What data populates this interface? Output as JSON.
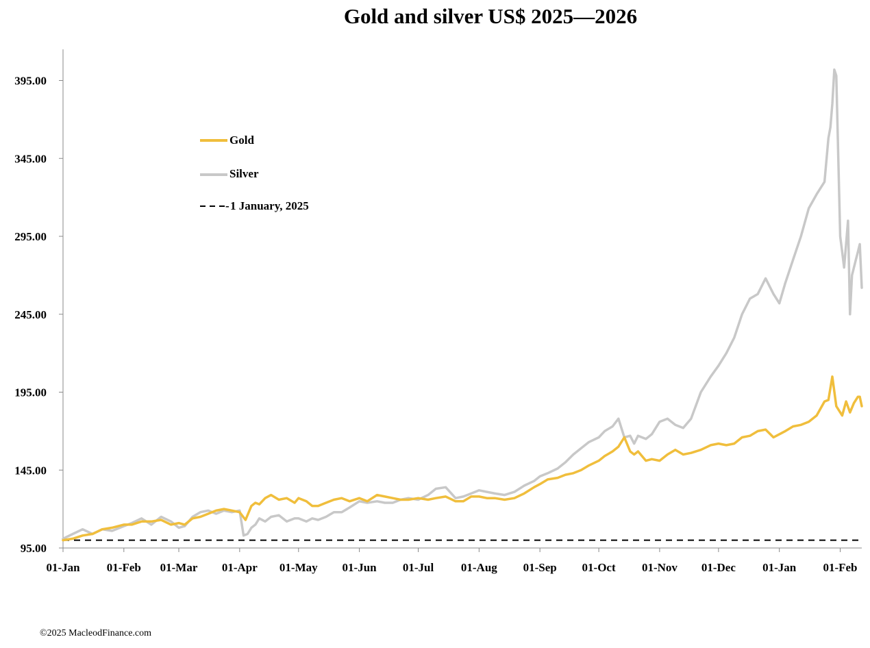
{
  "chart_data": {
    "type": "line",
    "title": "Gold and silver  US$ 2025—2026",
    "xlabel": "",
    "ylabel": "",
    "ylim": [
      95,
      415
    ],
    "yticks": [
      95,
      145,
      195,
      245,
      295,
      345,
      395
    ],
    "ytick_labels": [
      "95.00",
      "145.00",
      "195.00",
      "245.00",
      "295.00",
      "345.00",
      "395.00"
    ],
    "xlim": [
      0,
      407
    ],
    "xticks": [
      0,
      31,
      59,
      90,
      120,
      151,
      181,
      212,
      243,
      273,
      304,
      334,
      365,
      396
    ],
    "xtick_labels": [
      "01-Jan",
      "01-Feb",
      "01-Mar",
      "01-Apr",
      "01-May",
      "01-Jun",
      "01-Jul",
      "01-Aug",
      "01-Sep",
      "01-Oct",
      "01-Nov",
      "01-Dec",
      "01-Jan",
      "01-Feb"
    ],
    "grid": false,
    "legend_position": "upper-left",
    "footer": "©2025 MacleodFinance.com",
    "series": [
      {
        "name": "Gold",
        "color": "#f0be3c",
        "style": "solid",
        "x": [
          0,
          5,
          10,
          15,
          20,
          25,
          31,
          35,
          40,
          45,
          50,
          55,
          59,
          62,
          66,
          70,
          74,
          78,
          82,
          86,
          90,
          93,
          96,
          98,
          100,
          103,
          106,
          110,
          114,
          118,
          120,
          124,
          127,
          130,
          134,
          138,
          142,
          146,
          151,
          155,
          160,
          164,
          168,
          172,
          176,
          181,
          186,
          190,
          195,
          200,
          204,
          208,
          212,
          216,
          220,
          225,
          230,
          235,
          240,
          243,
          247,
          252,
          256,
          260,
          264,
          268,
          273,
          276,
          280,
          283,
          286,
          289,
          291,
          293,
          297,
          300,
          304,
          308,
          312,
          316,
          320,
          325,
          330,
          334,
          338,
          342,
          346,
          350,
          354,
          358,
          362,
          365,
          368,
          372,
          376,
          380,
          384,
          388,
          390,
          392,
          394,
          397,
          399,
          401,
          403,
          405,
          406,
          407
        ],
        "values": [
          100,
          101,
          103,
          104,
          107,
          108,
          110,
          110,
          112,
          112,
          113,
          110,
          111,
          110,
          114,
          115,
          117,
          119,
          120,
          119,
          118,
          113,
          122,
          124,
          123,
          127,
          129,
          126,
          127,
          124,
          127,
          125,
          122,
          122,
          124,
          126,
          127,
          125,
          127,
          125,
          129,
          128,
          127,
          126,
          126,
          127,
          126,
          127,
          128,
          125,
          125,
          128,
          128,
          127,
          127,
          126,
          127,
          130,
          134,
          136,
          139,
          140,
          142,
          143,
          145,
          148,
          151,
          154,
          157,
          160,
          166,
          157,
          155,
          157,
          151,
          152,
          151,
          155,
          158,
          155,
          156,
          158,
          161,
          162,
          161,
          162,
          166,
          167,
          170,
          171,
          166,
          168,
          170,
          173,
          174,
          176,
          180,
          189,
          190,
          205,
          186,
          180,
          189,
          182,
          188,
          192,
          192,
          186
        ]
      },
      {
        "name": "Silver",
        "color": "#c8c8c8",
        "style": "solid",
        "x": [
          0,
          5,
          10,
          15,
          20,
          25,
          31,
          35,
          40,
          45,
          50,
          55,
          59,
          62,
          66,
          70,
          74,
          78,
          82,
          86,
          90,
          92,
          94,
          96,
          98,
          100,
          103,
          106,
          110,
          114,
          118,
          120,
          124,
          127,
          130,
          134,
          138,
          142,
          146,
          151,
          155,
          160,
          164,
          168,
          172,
          176,
          181,
          186,
          190,
          195,
          200,
          204,
          208,
          212,
          216,
          220,
          225,
          230,
          235,
          240,
          243,
          247,
          252,
          256,
          260,
          264,
          268,
          273,
          276,
          280,
          283,
          286,
          289,
          291,
          293,
          297,
          300,
          304,
          308,
          312,
          316,
          320,
          325,
          330,
          334,
          338,
          342,
          346,
          350,
          354,
          358,
          362,
          365,
          368,
          372,
          376,
          380,
          384,
          388,
          390,
          391,
          392,
          393,
          394,
          396,
          397,
          398,
          399,
          400,
          401,
          402,
          404,
          405,
          406,
          407
        ],
        "values": [
          101,
          104,
          107,
          104,
          107,
          106,
          109,
          111,
          114,
          110,
          115,
          112,
          108,
          109,
          115,
          118,
          119,
          117,
          119,
          118,
          119,
          103,
          104,
          108,
          110,
          114,
          112,
          115,
          116,
          112,
          114,
          114,
          112,
          114,
          113,
          115,
          118,
          118,
          121,
          125,
          124,
          125,
          124,
          124,
          126,
          127,
          126,
          129,
          133,
          134,
          127,
          128,
          130,
          132,
          131,
          130,
          129,
          131,
          135,
          138,
          141,
          143,
          146,
          150,
          155,
          159,
          163,
          166,
          170,
          173,
          178,
          166,
          167,
          162,
          167,
          165,
          168,
          176,
          178,
          174,
          172,
          178,
          195,
          205,
          212,
          220,
          230,
          245,
          255,
          258,
          268,
          258,
          252,
          265,
          280,
          295,
          313,
          322,
          330,
          358,
          365,
          380,
          402,
          398,
          295,
          285,
          275,
          290,
          305,
          245,
          270,
          280,
          285,
          290,
          262
        ]
      },
      {
        "name": "1 January, 2025",
        "color": "#000000",
        "style": "dashed",
        "x": [
          0,
          407
        ],
        "values": [
          100,
          100
        ]
      }
    ]
  }
}
